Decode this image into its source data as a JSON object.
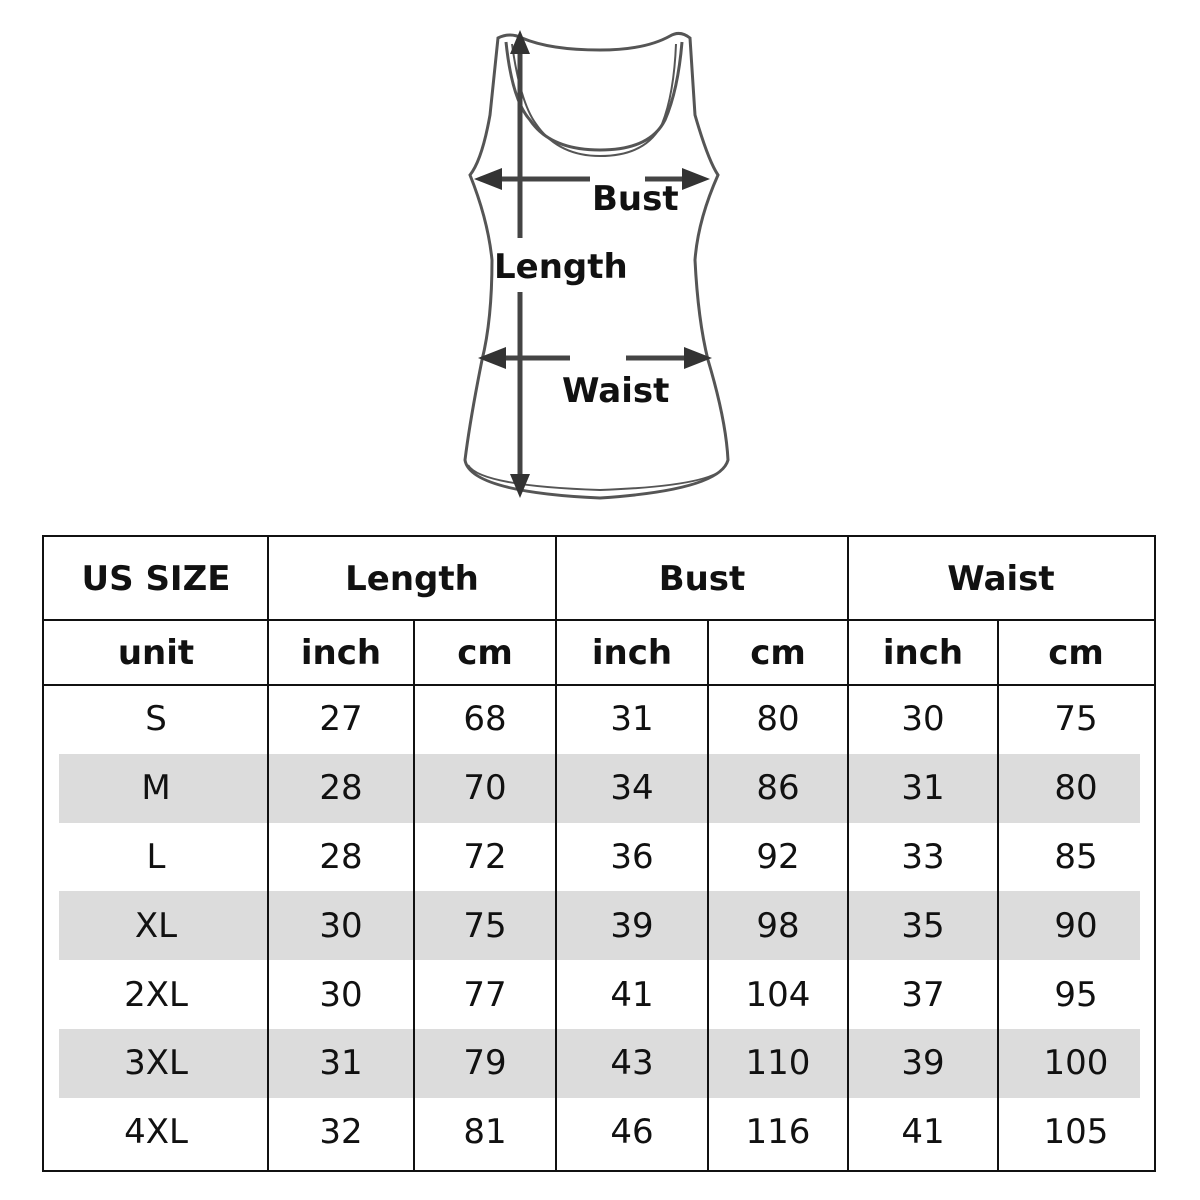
{
  "diagram": {
    "labels": {
      "bust": "Bust",
      "length": "Length",
      "waist": "Waist"
    }
  },
  "table": {
    "header": {
      "size": "US SIZE",
      "groups": [
        "Length",
        "Bust",
        "Waist"
      ]
    },
    "units": [
      "unit",
      "inch",
      "cm",
      "inch",
      "cm",
      "inch",
      "cm"
    ],
    "rows": [
      [
        "S",
        "27",
        "68",
        "31",
        "80",
        "30",
        "75"
      ],
      [
        "M",
        "28",
        "70",
        "34",
        "86",
        "31",
        "80"
      ],
      [
        "L",
        "28",
        "72",
        "36",
        "92",
        "33",
        "85"
      ],
      [
        "XL",
        "30",
        "75",
        "39",
        "98",
        "35",
        "90"
      ],
      [
        "2XL",
        "30",
        "77",
        "41",
        "104",
        "37",
        "95"
      ],
      [
        "3XL",
        "31",
        "79",
        "43",
        "110",
        "39",
        "100"
      ],
      [
        "4XL",
        "32",
        "81",
        "46",
        "116",
        "41",
        "105"
      ]
    ],
    "stripe_color": "#dcdcdc"
  }
}
